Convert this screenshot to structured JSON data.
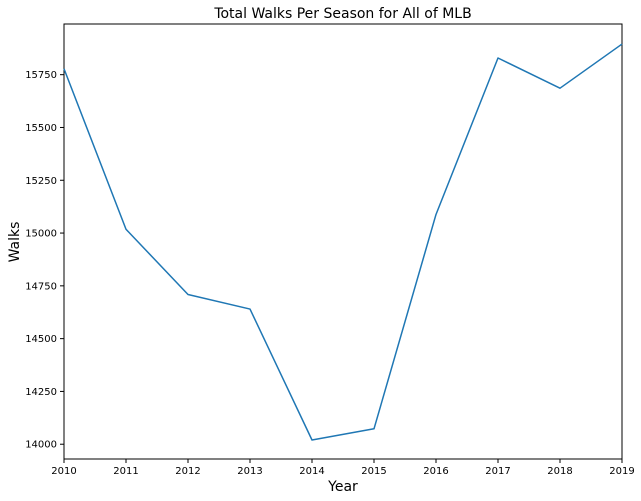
{
  "chart_data": {
    "type": "line",
    "title": "Total Walks Per Season for All of MLB",
    "xlabel": "Year",
    "ylabel": "Walks",
    "x": [
      2010,
      2011,
      2012,
      2013,
      2014,
      2015,
      2016,
      2017,
      2018,
      2019
    ],
    "series": [
      {
        "values": [
          15778,
          15018,
          14709,
          14640,
          14020,
          14073,
          15088,
          15829,
          15686,
          15895
        ]
      }
    ],
    "xlim": [
      2010,
      2019
    ],
    "ylim": [
      13930,
      15990
    ],
    "xticks": [
      "2010",
      "2011",
      "2012",
      "2013",
      "2014",
      "2015",
      "2016",
      "2017",
      "2018",
      "2019"
    ],
    "yticks": [
      14000,
      14250,
      14500,
      14750,
      15000,
      15250,
      15500,
      15750
    ],
    "ytick_labels": [
      "14000",
      "14250",
      "14500",
      "14750",
      "15000",
      "15250",
      "15500",
      "15750"
    ],
    "grid": false,
    "colors": {
      "line": "#1f77b4",
      "axes": "#000000"
    }
  }
}
